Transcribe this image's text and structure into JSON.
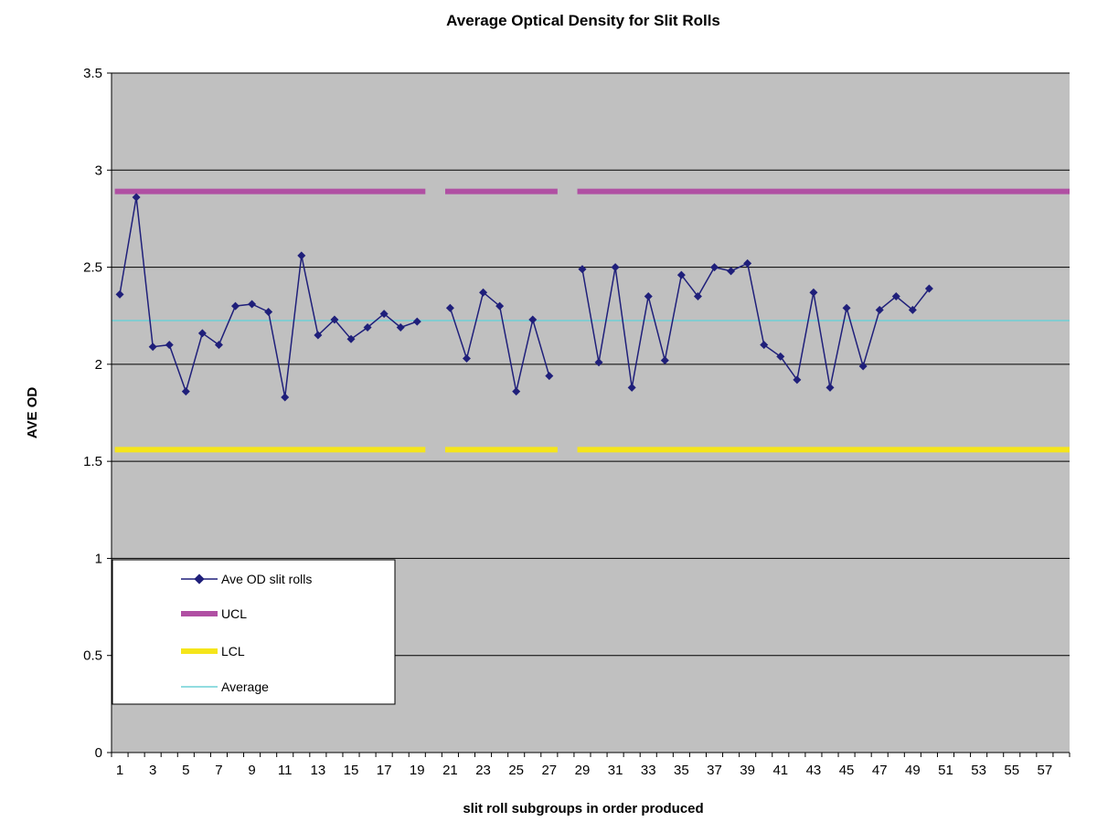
{
  "chart_data": {
    "type": "line",
    "title": "Average Optical Density for Slit Rolls",
    "xlabel": "slit roll subgroups in order produced",
    "ylabel": "AVE OD",
    "ylim": [
      0,
      3.5
    ],
    "xlim": [
      1,
      58
    ],
    "y_ticks": [
      "0",
      "0.5",
      "1",
      "1.5",
      "2",
      "2.5",
      "3",
      "3.5"
    ],
    "x_tick_labels": [
      "1",
      "3",
      "5",
      "7",
      "9",
      "11",
      "13",
      "15",
      "17",
      "19",
      "21",
      "23",
      "25",
      "27",
      "29",
      "31",
      "33",
      "35",
      "37",
      "39",
      "41",
      "43",
      "45",
      "47",
      "49",
      "51",
      "53",
      "55",
      "57"
    ],
    "grid": "horizontal",
    "legend_position": "bottom-left",
    "colors": {
      "plot_background": "#c0c0c0",
      "gridline": "#000000",
      "ave_od": "#1f1f7a",
      "ucl": "#b04fa3",
      "lcl": "#f5e51a",
      "average": "#6fd0d6"
    },
    "series": [
      {
        "name": "Ave OD slit rolls",
        "segments": [
          {
            "x": [
              1,
              2,
              3,
              4,
              5,
              6,
              7,
              8,
              9,
              10,
              11,
              12,
              13,
              14,
              15,
              16,
              17,
              18,
              19
            ],
            "y": [
              2.36,
              2.86,
              2.09,
              2.1,
              1.86,
              2.16,
              2.1,
              2.3,
              2.31,
              2.27,
              1.83,
              2.56,
              2.15,
              2.23,
              2.13,
              2.19,
              2.26,
              2.19,
              2.22
            ]
          },
          {
            "x": [
              21,
              22,
              23,
              24,
              25,
              26,
              27
            ],
            "y": [
              2.29,
              2.03,
              2.37,
              2.3,
              1.86,
              2.23,
              1.94
            ]
          },
          {
            "x": [
              29,
              30,
              31,
              32,
              33,
              34,
              35,
              36,
              37,
              38,
              39,
              40,
              41,
              42,
              43,
              44,
              45,
              46,
              47,
              48,
              49,
              50
            ],
            "y": [
              2.49,
              2.01,
              2.5,
              1.88,
              2.35,
              2.02,
              2.46,
              2.35,
              2.5,
              2.48,
              2.52,
              2.1,
              2.04,
              1.92,
              2.37,
              1.88,
              2.29,
              1.99,
              2.28,
              2.35,
              2.28,
              2.39
            ]
          }
        ]
      },
      {
        "name": "UCL",
        "value": 2.89,
        "ranges": [
          [
            1,
            19
          ],
          [
            21,
            27
          ],
          [
            29,
            58
          ]
        ]
      },
      {
        "name": "LCL",
        "value": 1.56,
        "ranges": [
          [
            1,
            19
          ],
          [
            21,
            27
          ],
          [
            29,
            58
          ]
        ]
      },
      {
        "name": "Average",
        "value": 2.225,
        "ranges": [
          [
            1,
            58
          ]
        ]
      }
    ]
  }
}
